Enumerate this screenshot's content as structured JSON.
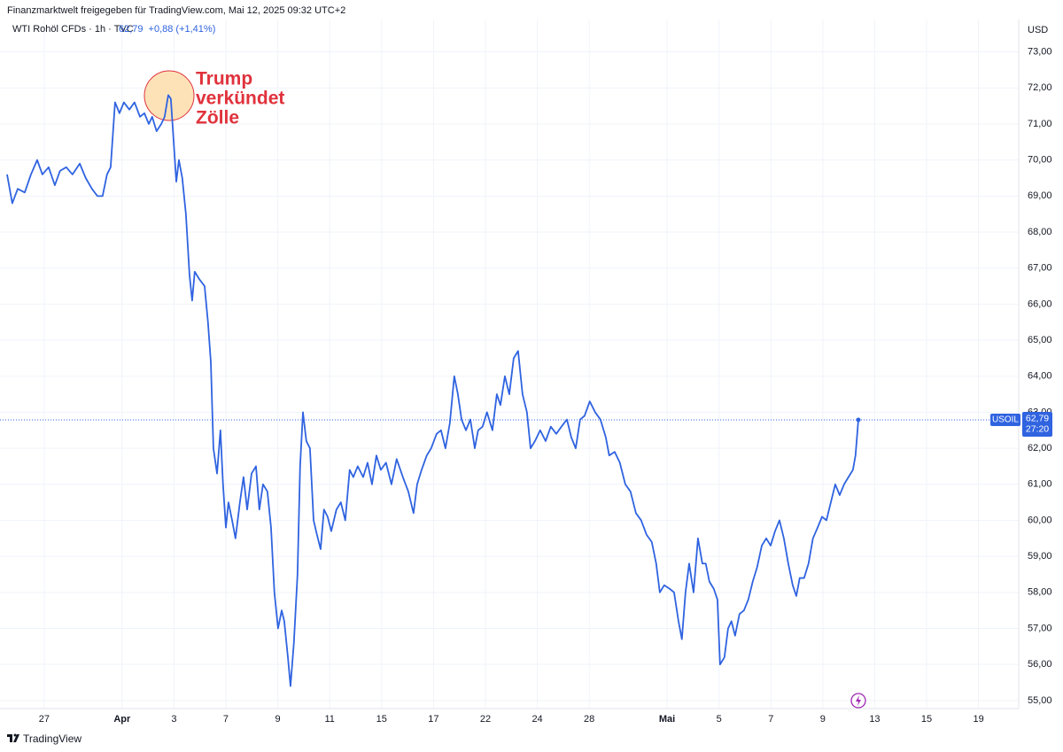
{
  "header": {
    "title": "Finanzmarktwelt freigegeben für TradingView.com, Mai 12, 2025 09:32 UTC+2"
  },
  "chart_data": {
    "type": "line",
    "symbol": "WTI Rohöl CFDs · 1h · TVC",
    "last_label": "62,79",
    "change": "+0,88 (+1,41%)",
    "currency": "USD",
    "annotation": [
      "Trump",
      "verkündet",
      "Zölle"
    ],
    "countdown": "27:20",
    "grid": true,
    "xlim": [
      -1.43,
      37.48
    ],
    "ylim": [
      54.8,
      73.9
    ],
    "xticks": [
      {
        "value": 0,
        "label": "27"
      },
      {
        "value": 3,
        "label": "Apr"
      },
      {
        "value": 5,
        "label": "3"
      },
      {
        "value": 7,
        "label": "7"
      },
      {
        "value": 9,
        "label": "9"
      },
      {
        "value": 11,
        "label": "11"
      },
      {
        "value": 13,
        "label": "15"
      },
      {
        "value": 15,
        "label": "17"
      },
      {
        "value": 17,
        "label": "22"
      },
      {
        "value": 19,
        "label": "24"
      },
      {
        "value": 21,
        "label": "28"
      },
      {
        "value": 24,
        "label": "Mai"
      },
      {
        "value": 26,
        "label": "5"
      },
      {
        "value": 28,
        "label": "7"
      },
      {
        "value": 30,
        "label": "9"
      },
      {
        "value": 32,
        "label": "13"
      },
      {
        "value": 34,
        "label": "15"
      },
      {
        "value": 36,
        "label": "19"
      }
    ],
    "yticks": [
      {
        "value": 55,
        "label": "55,00"
      },
      {
        "value": 56,
        "label": "56,00"
      },
      {
        "value": 57,
        "label": "57,00"
      },
      {
        "value": 58,
        "label": "58,00"
      },
      {
        "value": 59,
        "label": "59,00"
      },
      {
        "value": 60,
        "label": "60,00"
      },
      {
        "value": 61,
        "label": "61,00"
      },
      {
        "value": 62,
        "label": "62,00"
      },
      {
        "value": 63,
        "label": "63,00"
      },
      {
        "value": 64,
        "label": "64,00"
      },
      {
        "value": 65,
        "label": "65,00"
      },
      {
        "value": 66,
        "label": "66,00"
      },
      {
        "value": 67,
        "label": "67,00"
      },
      {
        "value": 68,
        "label": "68,00"
      },
      {
        "value": 69,
        "label": "69,00"
      },
      {
        "value": 70,
        "label": "70,00"
      },
      {
        "value": 71,
        "label": "71,00"
      },
      {
        "value": 72,
        "label": "72,00"
      },
      {
        "value": 73,
        "label": "73,00"
      }
    ],
    "x": [
      -1.43,
      -1.23,
      -1.02,
      -0.75,
      -0.51,
      -0.27,
      -0.07,
      0.17,
      0.41,
      0.61,
      0.85,
      1.09,
      1.37,
      1.6,
      1.84,
      2.05,
      2.25,
      2.42,
      2.56,
      2.73,
      2.9,
      3.07,
      3.28,
      3.48,
      3.69,
      3.86,
      4.03,
      4.16,
      4.33,
      4.51,
      4.64,
      4.78,
      4.88,
      4.98,
      5.09,
      5.19,
      5.32,
      5.46,
      5.6,
      5.7,
      5.8,
      5.97,
      6.18,
      6.31,
      6.42,
      6.52,
      6.66,
      6.79,
      6.89,
      7.0,
      7.1,
      7.24,
      7.37,
      7.54,
      7.68,
      7.82,
      7.99,
      8.16,
      8.29,
      8.43,
      8.6,
      8.74,
      8.87,
      9.01,
      9.15,
      9.25,
      9.39,
      9.49,
      9.62,
      9.76,
      9.86,
      9.97,
      10.1,
      10.24,
      10.38,
      10.51,
      10.65,
      10.78,
      10.92,
      11.06,
      11.26,
      11.43,
      11.6,
      11.77,
      11.91,
      12.08,
      12.29,
      12.46,
      12.63,
      12.8,
      12.97,
      13.17,
      13.38,
      13.58,
      13.82,
      14.03,
      14.23,
      14.37,
      14.54,
      14.74,
      14.91,
      15.12,
      15.29,
      15.46,
      15.63,
      15.8,
      15.94,
      16.08,
      16.25,
      16.42,
      16.59,
      16.72,
      16.89,
      17.06,
      17.27,
      17.44,
      17.58,
      17.75,
      17.92,
      18.09,
      18.26,
      18.43,
      18.6,
      18.74,
      18.91,
      19.11,
      19.32,
      19.52,
      19.73,
      19.93,
      20.14,
      20.31,
      20.48,
      20.65,
      20.82,
      21.02,
      21.23,
      21.43,
      21.64,
      21.77,
      21.98,
      22.18,
      22.39,
      22.59,
      22.8,
      23.0,
      23.21,
      23.41,
      23.58,
      23.72,
      23.89,
      24.1,
      24.27,
      24.44,
      24.57,
      24.71,
      24.85,
      25.02,
      25.19,
      25.36,
      25.49,
      25.63,
      25.8,
      25.94,
      26.04,
      26.21,
      26.35,
      26.48,
      26.62,
      26.79,
      26.96,
      27.13,
      27.3,
      27.47,
      27.65,
      27.82,
      27.99,
      28.16,
      28.33,
      28.5,
      28.67,
      28.84,
      28.98,
      29.11,
      29.28,
      29.45,
      29.62,
      29.8,
      29.97,
      30.14,
      30.31,
      30.48,
      30.65,
      30.82,
      30.99,
      31.16,
      31.26,
      31.37
    ],
    "series": [
      {
        "name": "USOIL",
        "color": "#2f63e0",
        "values": [
          69.6,
          68.8,
          69.2,
          69.1,
          69.6,
          70.0,
          69.6,
          69.8,
          69.3,
          69.7,
          69.8,
          69.6,
          69.9,
          69.5,
          69.2,
          69.0,
          69.0,
          69.6,
          69.8,
          71.6,
          71.3,
          71.6,
          71.4,
          71.6,
          71.2,
          71.3,
          71.0,
          71.2,
          70.8,
          71.0,
          71.2,
          71.8,
          71.7,
          70.6,
          69.4,
          70.0,
          69.5,
          68.5,
          66.8,
          66.1,
          66.9,
          66.7,
          66.5,
          65.5,
          64.4,
          62.0,
          61.3,
          62.5,
          61.0,
          59.8,
          60.5,
          60.0,
          59.5,
          60.5,
          61.2,
          60.3,
          61.3,
          61.5,
          60.3,
          61.0,
          60.8,
          59.8,
          58.0,
          57.0,
          57.5,
          57.2,
          56.2,
          55.4,
          56.6,
          58.5,
          61.5,
          63.0,
          62.2,
          62.0,
          60.0,
          59.6,
          59.2,
          60.3,
          60.1,
          59.7,
          60.3,
          60.5,
          60.0,
          61.4,
          61.2,
          61.5,
          61.2,
          61.6,
          61.0,
          61.8,
          61.4,
          61.6,
          61.0,
          61.7,
          61.2,
          60.8,
          60.2,
          61.0,
          61.4,
          61.8,
          62.0,
          62.4,
          62.5,
          62.0,
          62.7,
          64.0,
          63.5,
          62.8,
          62.5,
          62.8,
          62.0,
          62.5,
          62.6,
          63.0,
          62.5,
          63.5,
          63.2,
          64.0,
          63.5,
          64.5,
          64.7,
          63.5,
          63.0,
          62.0,
          62.2,
          62.5,
          62.2,
          62.6,
          62.4,
          62.6,
          62.8,
          62.3,
          62.0,
          62.8,
          62.9,
          63.3,
          63.0,
          62.8,
          62.3,
          61.8,
          61.9,
          61.6,
          61.0,
          60.8,
          60.2,
          60.0,
          59.6,
          59.4,
          58.8,
          58.0,
          58.2,
          58.1,
          58.0,
          57.2,
          56.7,
          58.0,
          58.8,
          58.0,
          59.5,
          58.8,
          58.8,
          58.3,
          58.1,
          57.8,
          56.0,
          56.2,
          57.0,
          57.2,
          56.8,
          57.4,
          57.5,
          57.8,
          58.3,
          58.7,
          59.3,
          59.5,
          59.3,
          59.7,
          60.0,
          59.5,
          58.8,
          58.2,
          57.9,
          58.4,
          58.4,
          58.8,
          59.5,
          59.8,
          60.1,
          60.0,
          60.5,
          61.0,
          60.7,
          61.0,
          61.2,
          61.4,
          61.8,
          62.79
        ]
      }
    ]
  },
  "footer": {
    "brand": "TradingView"
  }
}
